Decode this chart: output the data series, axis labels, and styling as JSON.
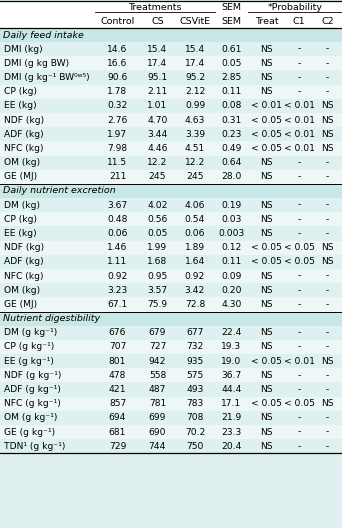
{
  "sections": [
    {
      "label": "Daily feed intake",
      "rows": [
        [
          "DMI (kg)",
          "14.6",
          "15.4",
          "15.4",
          "0.61",
          "NS",
          "-",
          "-"
        ],
        [
          "DMI (g kg BW)",
          "16.6",
          "17.4",
          "17.4",
          "0.05",
          "NS",
          "-",
          "-"
        ],
        [
          "DMI (g kg⁻¹ BW⁰ʷ⁵)",
          "90.6",
          "95.1",
          "95.2",
          "2.85",
          "NS",
          "-",
          "-"
        ],
        [
          "CP (kg)",
          "1.78",
          "2.11",
          "2.12",
          "0.11",
          "NS",
          "-",
          "-"
        ],
        [
          "EE (kg)",
          "0.32",
          "1.01",
          "0.99",
          "0.08",
          "< 0.01",
          "< 0.01",
          "NS"
        ],
        [
          "NDF (kg)",
          "2.76",
          "4.70",
          "4.63",
          "0.31",
          "< 0.05",
          "< 0.01",
          "NS"
        ],
        [
          "ADF (kg)",
          "1.97",
          "3.44",
          "3.39",
          "0.23",
          "< 0.05",
          "< 0.01",
          "NS"
        ],
        [
          "NFC (kg)",
          "7.98",
          "4.46",
          "4.51",
          "0.49",
          "< 0.05",
          "< 0.01",
          "NS"
        ],
        [
          "OM (kg)",
          "11.5",
          "12.2",
          "12.2",
          "0.64",
          "NS",
          "-",
          "-"
        ],
        [
          "GE (MJ)",
          "211",
          "245",
          "245",
          "28.0",
          "NS",
          "-",
          "-"
        ]
      ]
    },
    {
      "label": "Daily nutrient excretion",
      "rows": [
        [
          "DM (kg)",
          "3.67",
          "4.02",
          "4.06",
          "0.19",
          "NS",
          "-",
          "-"
        ],
        [
          "CP (kg)",
          "0.48",
          "0.56",
          "0.54",
          "0.03",
          "NS",
          "-",
          "-"
        ],
        [
          "EE (kg)",
          "0.06",
          "0.05",
          "0.06",
          "0.003",
          "NS",
          "-",
          "-"
        ],
        [
          "NDF (kg)",
          "1.46",
          "1.99",
          "1.89",
          "0.12",
          "< 0.05",
          "< 0.05",
          "NS"
        ],
        [
          "ADF (kg)",
          "1.11",
          "1.68",
          "1.64",
          "0.11",
          "< 0.05",
          "< 0.05",
          "NS"
        ],
        [
          "NFC (kg)",
          "0.92",
          "0.95",
          "0.92",
          "0.09",
          "NS",
          "-",
          "-"
        ],
        [
          "OM (kg)",
          "3.23",
          "3.57",
          "3.42",
          "0.20",
          "NS",
          "-",
          "-"
        ],
        [
          "GE (MJ)",
          "67.1",
          "75.9",
          "72.8",
          "4.30",
          "NS",
          "-",
          "-"
        ]
      ]
    },
    {
      "label": "Nutrient digestibility",
      "rows": [
        [
          "DM (g kg⁻¹)",
          "676",
          "679",
          "677",
          "22.4",
          "NS",
          "-",
          "-"
        ],
        [
          "CP (g kg⁻¹)",
          "707",
          "727",
          "732",
          "19.3",
          "NS",
          "-",
          "-"
        ],
        [
          "EE (g kg⁻¹)",
          "801",
          "942",
          "935",
          "19.0",
          "< 0.05",
          "< 0.01",
          "NS"
        ],
        [
          "NDF (g kg⁻¹)",
          "478",
          "558",
          "575",
          "36.7",
          "NS",
          "-",
          "-"
        ],
        [
          "ADF (g kg⁻¹)",
          "421",
          "487",
          "493",
          "44.4",
          "NS",
          "-",
          "-"
        ],
        [
          "NFC (g kg⁻¹)",
          "857",
          "781",
          "783",
          "17.1",
          "< 0.05",
          "< 0.05",
          "NS"
        ],
        [
          "OM (g kg⁻¹)",
          "694",
          "699",
          "708",
          "21.9",
          "NS",
          "-",
          "-"
        ],
        [
          "GE (g kg⁻¹)",
          "681",
          "690",
          "70.2",
          "23.3",
          "NS",
          "-",
          "-"
        ],
        [
          "TDN¹ (g kg⁻¹)",
          "729",
          "744",
          "750",
          "20.4",
          "NS",
          "-",
          "-"
        ]
      ]
    }
  ],
  "col_labels": [
    "",
    "Control",
    "CS",
    "CSVitE",
    "SEM",
    "Treat",
    "C1",
    "C2"
  ],
  "bg_color": "#e0f0f0",
  "header_bg": "#ffffff",
  "section_bg": "#c8e8e8",
  "row_bg_even": "#dff0f0",
  "row_bg_odd": "#edf7f7"
}
